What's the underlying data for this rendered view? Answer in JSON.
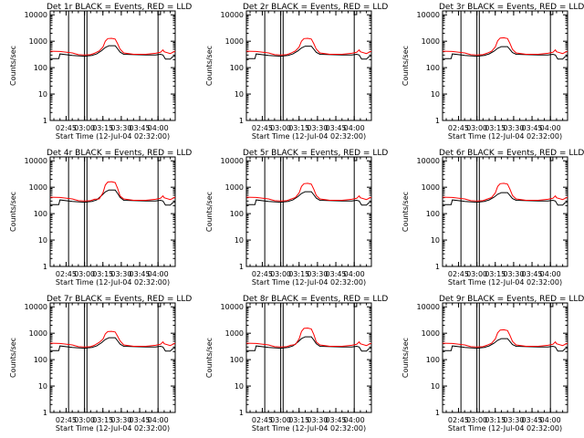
{
  "figure": {
    "panel_title_suffix": " BLACK = Events, RED = LLD",
    "xlabel": "Start Time (12-Jul-04 02:32:00)",
    "ylabel": "Counts/sec",
    "colors": {
      "events": "#000000",
      "lld": "#ff0000",
      "axes": "#000000",
      "background": "#ffffff"
    }
  },
  "chart_data": [
    {
      "type": "line",
      "title": "Det 1r BLACK = Events, RED = LLD",
      "xlabel": "Start Time (12-Jul-04 02:32:00)",
      "ylabel": "Counts/sec",
      "yscale": "log",
      "ylim": [
        1,
        14000
      ],
      "xlim": [
        "02:32",
        "04:14"
      ],
      "xticks": [
        "02:45",
        "03:00",
        "03:15",
        "03:30",
        "03:45",
        "04:00"
      ],
      "yticks": [
        "1",
        "10",
        "100",
        "1000",
        "10000"
      ],
      "grid": false,
      "vertical_markers": [
        "02:47",
        "03:00",
        "03:02",
        "04:00"
      ],
      "bracket": [
        "04:00",
        "04:02"
      ],
      "peak_lld": 1300,
      "peak_events": 700,
      "series": [
        {
          "name": "Events",
          "color": "#000000"
        },
        {
          "name": "LLD",
          "color": "#ff0000"
        }
      ]
    },
    {
      "type": "line",
      "title": "Det 2r BLACK = Events, RED = LLD",
      "xlabel": "Start Time (12-Jul-04 02:32:00)",
      "ylabel": "Counts/sec",
      "yscale": "log",
      "ylim": [
        1,
        14000
      ],
      "xlim": [
        "02:32",
        "04:14"
      ],
      "xticks": [
        "02:45",
        "03:00",
        "03:15",
        "03:30",
        "03:45",
        "04:00"
      ],
      "yticks": [
        "1",
        "10",
        "100",
        "1000",
        "10000"
      ],
      "grid": false,
      "vertical_markers": [
        "02:47",
        "03:00",
        "03:02",
        "04:00"
      ],
      "bracket": [
        "04:00",
        "04:02"
      ],
      "peak_lld": 1300,
      "peak_events": 650,
      "series": [
        {
          "name": "Events",
          "color": "#000000"
        },
        {
          "name": "LLD",
          "color": "#ff0000"
        }
      ]
    },
    {
      "type": "line",
      "title": "Det 3r BLACK = Events, RED = LLD",
      "xlabel": "Start Time (12-Jul-04 02:32:00)",
      "ylabel": "Counts/sec",
      "yscale": "log",
      "ylim": [
        1,
        14000
      ],
      "xlim": [
        "02:32",
        "04:14"
      ],
      "xticks": [
        "02:45",
        "03:00",
        "03:15",
        "03:30",
        "03:45",
        "04:00"
      ],
      "yticks": [
        "1",
        "10",
        "100",
        "1000",
        "10000"
      ],
      "grid": false,
      "vertical_markers": [
        "02:47",
        "03:00",
        "03:02",
        "04:00"
      ],
      "bracket": [
        "04:00",
        "04:02"
      ],
      "peak_lld": 1400,
      "peak_events": 600,
      "series": [
        {
          "name": "Events",
          "color": "#000000"
        },
        {
          "name": "LLD",
          "color": "#ff0000"
        }
      ]
    },
    {
      "type": "line",
      "title": "Det 4r BLACK = Events, RED = LLD",
      "xlabel": "Start Time (12-Jul-04 02:32:00)",
      "ylabel": "Counts/sec",
      "yscale": "log",
      "ylim": [
        1,
        14000
      ],
      "xlim": [
        "02:32",
        "04:14"
      ],
      "xticks": [
        "02:45",
        "03:00",
        "03:15",
        "03:30",
        "03:45",
        "04:00"
      ],
      "yticks": [
        "1",
        "10",
        "100",
        "1000",
        "10000"
      ],
      "grid": false,
      "vertical_markers": [
        "02:47",
        "03:00",
        "03:02",
        "04:00"
      ],
      "bracket": [
        "04:00",
        "04:02"
      ],
      "peak_lld": 1900,
      "peak_events": 900,
      "series": [
        {
          "name": "Events",
          "color": "#000000"
        },
        {
          "name": "LLD",
          "color": "#ff0000"
        }
      ]
    },
    {
      "type": "line",
      "title": "Det 5r BLACK = Events, RED = LLD",
      "xlabel": "Start Time (12-Jul-04 02:32:00)",
      "ylabel": "Counts/sec",
      "yscale": "log",
      "ylim": [
        1,
        14000
      ],
      "xlim": [
        "02:32",
        "04:14"
      ],
      "xticks": [
        "02:45",
        "03:00",
        "03:15",
        "03:30",
        "03:45",
        "04:00"
      ],
      "yticks": [
        "1",
        "10",
        "100",
        "1000",
        "10000"
      ],
      "grid": false,
      "vertical_markers": [
        "02:47",
        "03:00",
        "03:02",
        "04:00"
      ],
      "bracket": [
        "04:00",
        "04:02"
      ],
      "peak_lld": 1500,
      "peak_events": 700,
      "series": [
        {
          "name": "Events",
          "color": "#000000"
        },
        {
          "name": "LLD",
          "color": "#ff0000"
        }
      ]
    },
    {
      "type": "line",
      "title": "Det 6r BLACK = Events, RED = LLD",
      "xlabel": "Start Time (12-Jul-04 02:32:00)",
      "ylabel": "Counts/sec",
      "yscale": "log",
      "ylim": [
        1,
        14000
      ],
      "xlim": [
        "02:32",
        "04:14"
      ],
      "xticks": [
        "02:45",
        "03:00",
        "03:15",
        "03:30",
        "03:45",
        "04:00"
      ],
      "yticks": [
        "1",
        "10",
        "100",
        "1000",
        "10000"
      ],
      "grid": false,
      "vertical_markers": [
        "02:47",
        "03:00",
        "03:02",
        "04:00"
      ],
      "bracket": [
        "04:00",
        "04:02"
      ],
      "peak_lld": 1500,
      "peak_events": 600,
      "series": [
        {
          "name": "Events",
          "color": "#000000"
        },
        {
          "name": "LLD",
          "color": "#ff0000"
        }
      ]
    },
    {
      "type": "line",
      "title": "Det 7r BLACK = Events, RED = LLD",
      "xlabel": "Start Time (12-Jul-04 02:32:00)",
      "ylabel": "Counts/sec",
      "yscale": "log",
      "ylim": [
        1,
        14000
      ],
      "xlim": [
        "02:32",
        "04:14"
      ],
      "xticks": [
        "02:45",
        "03:00",
        "03:15",
        "03:30",
        "03:45",
        "04:00"
      ],
      "yticks": [
        "1",
        "10",
        "100",
        "1000",
        "10000"
      ],
      "grid": false,
      "vertical_markers": [
        "02:47",
        "03:00",
        "03:02",
        "04:00"
      ],
      "bracket": [
        "04:00",
        "04:02"
      ],
      "peak_lld": 1100,
      "peak_events": 700,
      "series": [
        {
          "name": "Events",
          "color": "#000000"
        },
        {
          "name": "LLD",
          "color": "#ff0000"
        }
      ]
    },
    {
      "type": "line",
      "title": "Det 8r BLACK = Events, RED = LLD",
      "xlabel": "Start Time (12-Jul-04 02:32:00)",
      "ylabel": "Counts/sec",
      "yscale": "log",
      "ylim": [
        1,
        14000
      ],
      "xlim": [
        "02:32",
        "04:14"
      ],
      "xticks": [
        "02:45",
        "03:00",
        "03:15",
        "03:30",
        "03:45",
        "04:00"
      ],
      "yticks": [
        "1",
        "10",
        "100",
        "1000",
        "10000"
      ],
      "grid": false,
      "vertical_markers": [
        "02:47",
        "03:00",
        "03:02",
        "04:00"
      ],
      "bracket": [
        "04:00",
        "04:02"
      ],
      "peak_lld": 1800,
      "peak_events": 800,
      "series": [
        {
          "name": "Events",
          "color": "#000000"
        },
        {
          "name": "LLD",
          "color": "#ff0000"
        }
      ]
    },
    {
      "type": "line",
      "title": "Det 9r BLACK = Events, RED = LLD",
      "xlabel": "Start Time (12-Jul-04 02:32:00)",
      "ylabel": "Counts/sec",
      "yscale": "log",
      "ylim": [
        1,
        14000
      ],
      "xlim": [
        "02:32",
        "04:14"
      ],
      "xticks": [
        "02:45",
        "03:00",
        "03:15",
        "03:30",
        "03:45",
        "04:00"
      ],
      "yticks": [
        "1",
        "10",
        "100",
        "1000",
        "10000"
      ],
      "grid": false,
      "vertical_markers": [
        "02:47",
        "03:00",
        "03:02",
        "04:00"
      ],
      "bracket": [
        "04:00",
        "04:02"
      ],
      "peak_lld": 1400,
      "peak_events": 600,
      "series": [
        {
          "name": "Events",
          "color": "#000000"
        },
        {
          "name": "LLD",
          "color": "#ff0000"
        }
      ]
    }
  ]
}
